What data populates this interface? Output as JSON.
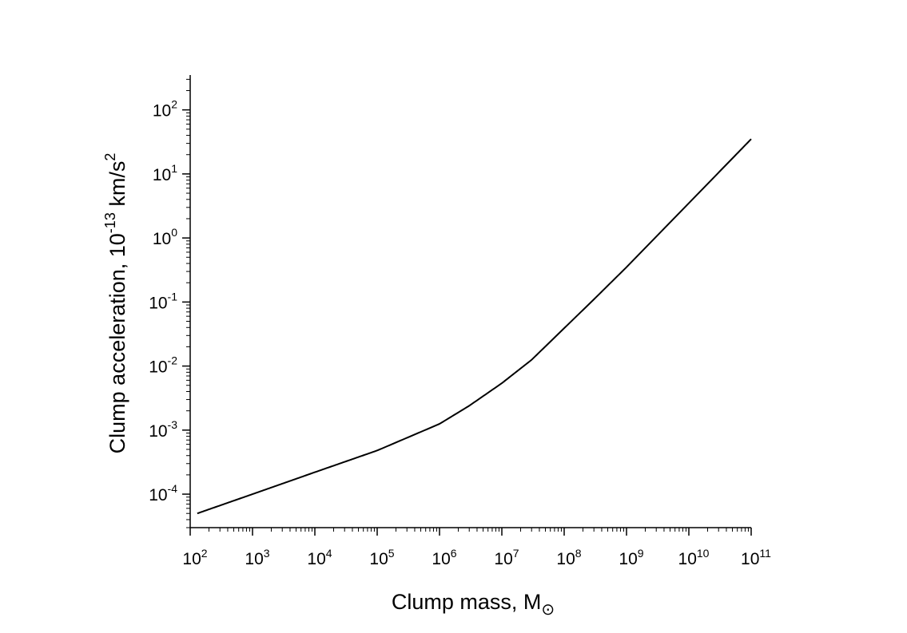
{
  "chart_data": {
    "type": "line",
    "title": "",
    "xlabel": "Clump mass, M",
    "xlabel_symbol": "⊙",
    "ylabel": "Clump acceleration,  10",
    "ylabel_exponent": "-13",
    "ylabel_unit": " km/s",
    "ylabel_unit_exponent": "2",
    "xscale": "log",
    "yscale": "log",
    "xlim": [
      100,
      100000000000
    ],
    "ylim": [
      3e-05,
      350
    ],
    "grid": false,
    "legend": "none",
    "x_ticks": [
      {
        "base": "10",
        "exp": "2",
        "value": 100
      },
      {
        "base": "10",
        "exp": "3",
        "value": 1000
      },
      {
        "base": "10",
        "exp": "4",
        "value": 10000
      },
      {
        "base": "10",
        "exp": "5",
        "value": 100000
      },
      {
        "base": "10",
        "exp": "6",
        "value": 1000000
      },
      {
        "base": "10",
        "exp": "7",
        "value": 10000000
      },
      {
        "base": "10",
        "exp": "8",
        "value": 100000000
      },
      {
        "base": "10",
        "exp": "9",
        "value": 1000000000
      },
      {
        "base": "10",
        "exp": "10",
        "value": 10000000000
      },
      {
        "base": "10",
        "exp": "11",
        "value": 100000000000
      }
    ],
    "y_ticks": [
      {
        "base": "10",
        "exp": "-4",
        "value": 0.0001
      },
      {
        "base": "10",
        "exp": "-3",
        "value": 0.001
      },
      {
        "base": "10",
        "exp": "-2",
        "value": 0.01
      },
      {
        "base": "10",
        "exp": "-1",
        "value": 0.1
      },
      {
        "base": "10",
        "exp": "0",
        "value": 1
      },
      {
        "base": "10",
        "exp": "1",
        "value": 10
      },
      {
        "base": "10",
        "exp": "2",
        "value": 100
      }
    ],
    "series": [
      {
        "color": "#000000",
        "x": [
          130,
          1000,
          10000,
          100000,
          1000000,
          3000000,
          10000000,
          30000000,
          100000000,
          300000000,
          1000000000,
          10000000000,
          100000000000
        ],
        "y": [
          5e-05,
          0.0001,
          0.00022,
          0.00048,
          0.00125,
          0.0024,
          0.0054,
          0.0125,
          0.039,
          0.11,
          0.35,
          3.5,
          35
        ]
      }
    ]
  }
}
